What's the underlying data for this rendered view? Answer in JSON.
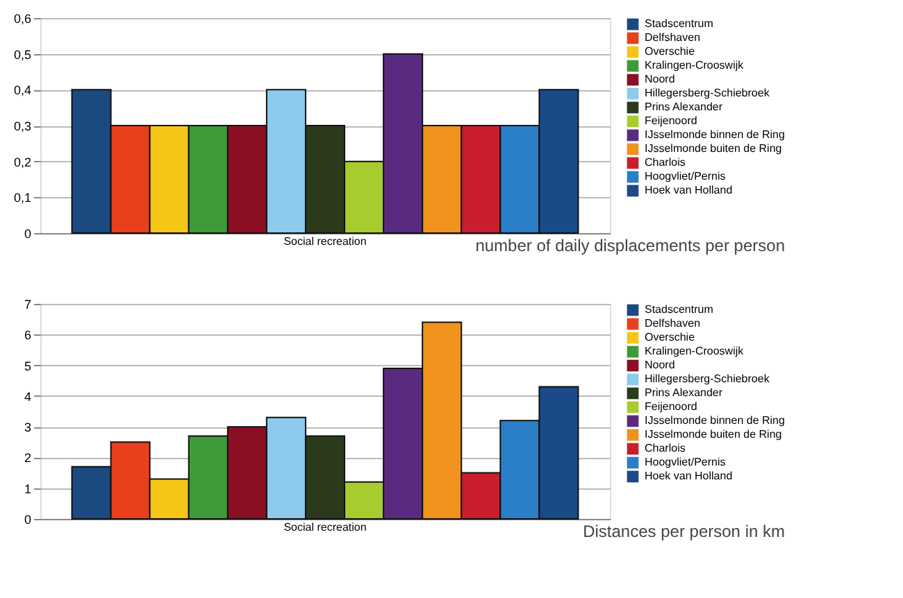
{
  "chart_data": [
    {
      "type": "bar",
      "title": "number of daily displacements per person",
      "categories": [
        "Social recreation"
      ],
      "ylim": [
        0,
        0.6
      ],
      "yticks": [
        0,
        {
          "value": 0.1,
          "label": "0,1"
        },
        {
          "value": 0.2,
          "label": "0,2"
        },
        {
          "value": 0.3,
          "label": "0,3"
        },
        {
          "value": 0.4,
          "label": "0,4"
        },
        {
          "value": 0.5,
          "label": "0,5"
        },
        {
          "value": 0.6,
          "label": "0,6"
        }
      ],
      "grid": "y",
      "legend": "right",
      "series": [
        {
          "name": "Stadscentrum",
          "color": "#1a4a80",
          "values": [
            0.4
          ]
        },
        {
          "name": "Delfshaven",
          "color": "#e8401c",
          "values": [
            0.3
          ]
        },
        {
          "name": "Overschie",
          "color": "#f5c518",
          "values": [
            0.3
          ]
        },
        {
          "name": "Kralingen-Crooswijk",
          "color": "#3f9a3a",
          "values": [
            0.3
          ]
        },
        {
          "name": "Noord",
          "color": "#8a0f25",
          "values": [
            0.3
          ]
        },
        {
          "name": "Hillegersberg-Schiebroek",
          "color": "#8ec9ee",
          "values": [
            0.4
          ]
        },
        {
          "name": "Prins Alexander",
          "color": "#2c3a1c",
          "values": [
            0.3
          ]
        },
        {
          "name": "Feijenoord",
          "color": "#a6cc2e",
          "values": [
            0.2
          ]
        },
        {
          "name": "IJsselmonde binnen de Ring",
          "color": "#5a2a80",
          "values": [
            0.5
          ]
        },
        {
          "name": "IJsselmonde buiten de Ring",
          "color": "#f0921c",
          "values": [
            0.3
          ]
        },
        {
          "name": "Charlois",
          "color": "#c81e2e",
          "values": [
            0.3
          ]
        },
        {
          "name": "Hoogvliet/Pernis",
          "color": "#2a7fc8",
          "values": [
            0.3
          ]
        },
        {
          "name": "Hoek van Holland",
          "color": "#1a4a88",
          "values": [
            0.4
          ]
        }
      ]
    },
    {
      "type": "bar",
      "title": "Distances per person in km",
      "categories": [
        "Social recreation"
      ],
      "ylim": [
        0,
        7
      ],
      "yticks": [
        0,
        1,
        2,
        3,
        4,
        5,
        6,
        7
      ],
      "grid": "y",
      "legend": "right",
      "series": [
        {
          "name": "Stadscentrum",
          "color": "#1a4a80",
          "values": [
            1.7
          ]
        },
        {
          "name": "Delfshaven",
          "color": "#e8401c",
          "values": [
            2.5
          ]
        },
        {
          "name": "Overschie",
          "color": "#f5c518",
          "values": [
            1.3
          ]
        },
        {
          "name": "Kralingen-Crooswijk",
          "color": "#3f9a3a",
          "values": [
            2.7
          ]
        },
        {
          "name": "Noord",
          "color": "#8a0f25",
          "values": [
            3.0
          ]
        },
        {
          "name": "Hillegersberg-Schiebroek",
          "color": "#8ec9ee",
          "values": [
            3.3
          ]
        },
        {
          "name": "Prins Alexander",
          "color": "#2c3a1c",
          "values": [
            2.7
          ]
        },
        {
          "name": "Feijenoord",
          "color": "#a6cc2e",
          "values": [
            1.2
          ]
        },
        {
          "name": "IJsselmonde binnen de Ring",
          "color": "#5a2a80",
          "values": [
            4.9
          ]
        },
        {
          "name": "IJsselmonde buiten de Ring",
          "color": "#f0921c",
          "values": [
            6.4
          ]
        },
        {
          "name": "Charlois",
          "color": "#c81e2e",
          "values": [
            1.5
          ]
        },
        {
          "name": "Hoogvliet/Pernis",
          "color": "#2a7fc8",
          "values": [
            3.2
          ]
        },
        {
          "name": "Hoek van Holland",
          "color": "#1a4a88",
          "values": [
            4.3
          ]
        }
      ]
    }
  ]
}
